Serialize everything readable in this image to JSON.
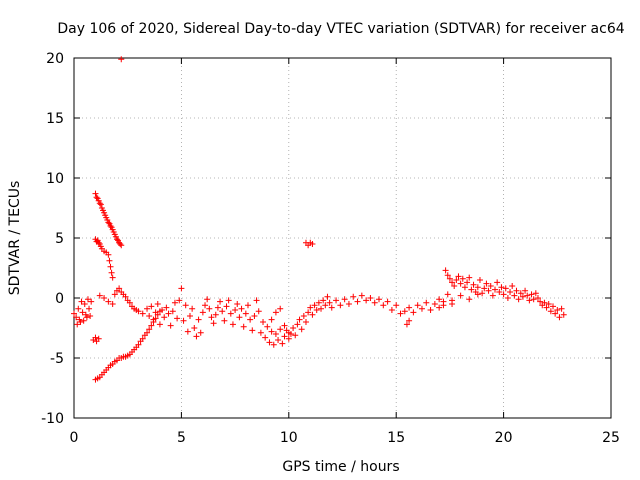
{
  "chart_data": {
    "type": "scatter",
    "title": "Day 106 of 2020, Sidereal Day-to-day VTEC variation (SDTVAR) for receiver ac64",
    "xlabel": "GPS time / hours",
    "ylabel": "SDTVAR / TECUs",
    "xlim": [
      0,
      25
    ],
    "ylim": [
      -10,
      20
    ],
    "xticks": [
      0,
      5,
      10,
      15,
      20,
      25
    ],
    "yticks": [
      -10,
      -5,
      0,
      5,
      10,
      15,
      20
    ],
    "xtick_labels": [
      "0",
      "5",
      "10",
      "15",
      "20",
      "25"
    ],
    "ytick_labels": [
      "-10",
      "-5",
      "0",
      "5",
      "10",
      "15",
      "20"
    ],
    "grid": true,
    "marker": "+",
    "series": [
      {
        "name": "SDTVAR",
        "color": "#ff0000",
        "points": [
          [
            0.0,
            -1.3
          ],
          [
            0.1,
            -1.6
          ],
          [
            0.15,
            -2.2
          ],
          [
            0.2,
            -0.9
          ],
          [
            0.25,
            -1.8
          ],
          [
            0.3,
            -2.0
          ],
          [
            0.35,
            -0.3
          ],
          [
            0.4,
            -1.2
          ],
          [
            0.45,
            -1.9
          ],
          [
            0.5,
            -0.5
          ],
          [
            0.55,
            -1.4
          ],
          [
            0.6,
            -1.6
          ],
          [
            0.65,
            -0.1
          ],
          [
            0.7,
            -0.9
          ],
          [
            0.75,
            -1.5
          ],
          [
            0.8,
            -0.3
          ],
          [
            0.9,
            -3.5
          ],
          [
            1.0,
            -3.3
          ],
          [
            1.05,
            -3.6
          ],
          [
            1.15,
            -3.4
          ],
          [
            1.0,
            8.7
          ],
          [
            1.05,
            8.4
          ],
          [
            1.1,
            8.3
          ],
          [
            1.15,
            8.1
          ],
          [
            1.2,
            7.9
          ],
          [
            1.25,
            7.8
          ],
          [
            1.3,
            7.5
          ],
          [
            1.35,
            7.3
          ],
          [
            1.4,
            7.1
          ],
          [
            1.45,
            6.9
          ],
          [
            1.5,
            6.7
          ],
          [
            1.55,
            6.5
          ],
          [
            1.6,
            6.3
          ],
          [
            1.65,
            6.2
          ],
          [
            1.7,
            6.0
          ],
          [
            1.75,
            5.9
          ],
          [
            1.8,
            5.7
          ],
          [
            1.85,
            5.5
          ],
          [
            1.9,
            5.3
          ],
          [
            1.95,
            5.1
          ],
          [
            2.0,
            4.9
          ],
          [
            2.05,
            4.8
          ],
          [
            2.1,
            4.6
          ],
          [
            2.15,
            4.5
          ],
          [
            2.2,
            4.4
          ],
          [
            1.0,
            4.9
          ],
          [
            1.05,
            4.7
          ],
          [
            1.1,
            4.8
          ],
          [
            1.15,
            4.6
          ],
          [
            1.2,
            4.5
          ],
          [
            1.25,
            4.3
          ],
          [
            1.3,
            4.1
          ],
          [
            1.4,
            3.9
          ],
          [
            1.5,
            3.8
          ],
          [
            1.6,
            3.6
          ],
          [
            1.65,
            3.1
          ],
          [
            1.7,
            2.6
          ],
          [
            1.75,
            2.1
          ],
          [
            1.8,
            1.7
          ],
          [
            2.2,
            19.9
          ],
          [
            1.0,
            -6.8
          ],
          [
            1.1,
            -6.7
          ],
          [
            1.2,
            -6.6
          ],
          [
            1.3,
            -6.4
          ],
          [
            1.4,
            -6.2
          ],
          [
            1.5,
            -6.0
          ],
          [
            1.6,
            -5.8
          ],
          [
            1.7,
            -5.6
          ],
          [
            1.8,
            -5.5
          ],
          [
            1.9,
            -5.3
          ],
          [
            2.0,
            -5.2
          ],
          [
            2.1,
            -5.0
          ],
          [
            2.2,
            -5.0
          ],
          [
            2.3,
            -4.9
          ],
          [
            2.4,
            -4.9
          ],
          [
            2.5,
            -4.8
          ],
          [
            2.6,
            -4.7
          ],
          [
            2.7,
            -4.5
          ],
          [
            2.8,
            -4.3
          ],
          [
            2.9,
            -4.1
          ],
          [
            3.0,
            -3.9
          ],
          [
            3.1,
            -3.6
          ],
          [
            3.2,
            -3.4
          ],
          [
            3.3,
            -3.1
          ],
          [
            3.4,
            -2.9
          ],
          [
            3.5,
            -2.6
          ],
          [
            3.6,
            -2.3
          ],
          [
            3.7,
            -2.0
          ],
          [
            3.8,
            -1.7
          ],
          [
            3.9,
            -1.4
          ],
          [
            4.0,
            -1.1
          ],
          [
            1.2,
            0.2
          ],
          [
            1.4,
            0.0
          ],
          [
            1.6,
            -0.3
          ],
          [
            1.8,
            -0.5
          ],
          [
            1.9,
            0.3
          ],
          [
            2.0,
            0.6
          ],
          [
            2.1,
            0.8
          ],
          [
            2.2,
            0.5
          ],
          [
            2.3,
            0.3
          ],
          [
            2.4,
            0.1
          ],
          [
            2.5,
            -0.2
          ],
          [
            2.6,
            -0.4
          ],
          [
            2.7,
            -0.7
          ],
          [
            2.8,
            -0.9
          ],
          [
            2.9,
            -1.0
          ],
          [
            3.0,
            -1.1
          ],
          [
            3.2,
            -1.3
          ],
          [
            3.4,
            -0.9
          ],
          [
            3.5,
            -1.5
          ],
          [
            3.6,
            -0.7
          ],
          [
            3.7,
            -1.8
          ],
          [
            3.8,
            -1.2
          ],
          [
            3.9,
            -0.5
          ],
          [
            4.0,
            -2.2
          ],
          [
            4.1,
            -1.0
          ],
          [
            4.2,
            -1.6
          ],
          [
            4.3,
            -0.8
          ],
          [
            4.4,
            -1.3
          ],
          [
            4.5,
            -2.3
          ],
          [
            4.6,
            -1.1
          ],
          [
            4.7,
            -0.4
          ],
          [
            4.8,
            -1.7
          ],
          [
            4.9,
            -0.2
          ],
          [
            5.0,
            0.8
          ],
          [
            5.1,
            -1.9
          ],
          [
            5.2,
            -0.6
          ],
          [
            5.3,
            -2.8
          ],
          [
            5.4,
            -1.5
          ],
          [
            5.5,
            -0.9
          ],
          [
            5.6,
            -2.5
          ],
          [
            5.7,
            -3.2
          ],
          [
            5.8,
            -1.8
          ],
          [
            5.9,
            -2.9
          ],
          [
            6.0,
            -1.2
          ],
          [
            6.1,
            -0.6
          ],
          [
            6.2,
            -0.1
          ],
          [
            6.3,
            -0.9
          ],
          [
            6.4,
            -1.6
          ],
          [
            6.5,
            -2.1
          ],
          [
            6.6,
            -1.4
          ],
          [
            6.7,
            -0.8
          ],
          [
            6.8,
            -0.3
          ],
          [
            6.9,
            -1.1
          ],
          [
            7.0,
            -1.9
          ],
          [
            7.1,
            -0.7
          ],
          [
            7.2,
            -0.2
          ],
          [
            7.3,
            -1.3
          ],
          [
            7.4,
            -2.2
          ],
          [
            7.5,
            -1.0
          ],
          [
            7.6,
            -0.5
          ],
          [
            7.7,
            -1.6
          ],
          [
            7.8,
            -0.9
          ],
          [
            7.9,
            -2.4
          ],
          [
            8.0,
            -1.3
          ],
          [
            8.1,
            -0.6
          ],
          [
            8.2,
            -1.8
          ],
          [
            8.3,
            -2.7
          ],
          [
            8.4,
            -1.5
          ],
          [
            8.5,
            -0.2
          ],
          [
            8.6,
            -1.1
          ],
          [
            8.7,
            -2.9
          ],
          [
            8.8,
            -2.0
          ],
          [
            8.9,
            -3.3
          ],
          [
            9.0,
            -2.4
          ],
          [
            9.1,
            -3.7
          ],
          [
            9.2,
            -2.8
          ],
          [
            9.3,
            -3.9
          ],
          [
            9.4,
            -3.0
          ],
          [
            9.5,
            -3.5
          ],
          [
            9.6,
            -2.6
          ],
          [
            9.7,
            -3.8
          ],
          [
            9.8,
            -3.2
          ],
          [
            9.9,
            -2.7
          ],
          [
            10.0,
            -3.4
          ],
          [
            10.1,
            -3.0
          ],
          [
            10.2,
            -2.5
          ],
          [
            10.3,
            -3.1
          ],
          [
            10.4,
            -2.2
          ],
          [
            10.5,
            -1.8
          ],
          [
            10.6,
            -2.6
          ],
          [
            10.7,
            -1.5
          ],
          [
            10.8,
            -2.0
          ],
          [
            10.9,
            -1.2
          ],
          [
            11.0,
            -0.8
          ],
          [
            11.1,
            -1.4
          ],
          [
            11.2,
            -0.6
          ],
          [
            11.3,
            -1.0
          ],
          [
            11.4,
            -0.4
          ],
          [
            11.5,
            -0.9
          ],
          [
            11.6,
            -0.2
          ],
          [
            11.7,
            -0.6
          ],
          [
            11.8,
            0.1
          ],
          [
            11.9,
            -0.4
          ],
          [
            12.0,
            -0.8
          ],
          [
            12.2,
            -0.2
          ],
          [
            12.4,
            -0.6
          ],
          [
            12.6,
            -0.1
          ],
          [
            12.8,
            -0.5
          ],
          [
            13.0,
            0.1
          ],
          [
            13.2,
            -0.3
          ],
          [
            13.4,
            0.2
          ],
          [
            13.6,
            -0.2
          ],
          [
            13.8,
            0.0
          ],
          [
            14.0,
            -0.4
          ],
          [
            14.2,
            -0.1
          ],
          [
            14.4,
            -0.6
          ],
          [
            14.6,
            -0.3
          ],
          [
            14.8,
            -1.0
          ],
          [
            15.0,
            -0.6
          ],
          [
            15.2,
            -1.3
          ],
          [
            15.4,
            -1.1
          ],
          [
            15.6,
            -0.8
          ],
          [
            15.8,
            -1.2
          ],
          [
            16.0,
            -0.6
          ],
          [
            16.2,
            -0.9
          ],
          [
            16.4,
            -0.4
          ],
          [
            16.6,
            -1.0
          ],
          [
            16.8,
            -0.5
          ],
          [
            17.0,
            -0.1
          ],
          [
            17.2,
            -0.6
          ],
          [
            17.4,
            0.3
          ],
          [
            17.6,
            -0.2
          ],
          [
            9.2,
            -1.8
          ],
          [
            9.4,
            -1.2
          ],
          [
            9.6,
            -0.9
          ],
          [
            9.8,
            -2.3
          ],
          [
            10.0,
            -2.9
          ],
          [
            10.8,
            4.6
          ],
          [
            10.9,
            4.4
          ],
          [
            11.0,
            4.6
          ],
          [
            11.1,
            4.5
          ],
          [
            15.5,
            -2.2
          ],
          [
            15.6,
            -1.9
          ],
          [
            17.3,
            2.3
          ],
          [
            17.4,
            1.9
          ],
          [
            17.5,
            1.6
          ],
          [
            17.6,
            1.3
          ],
          [
            17.7,
            1.0
          ],
          [
            17.8,
            1.5
          ],
          [
            17.9,
            1.8
          ],
          [
            18.0,
            1.2
          ],
          [
            18.1,
            1.6
          ],
          [
            18.2,
            0.9
          ],
          [
            18.3,
            1.3
          ],
          [
            18.4,
            1.7
          ],
          [
            18.5,
            0.7
          ],
          [
            18.6,
            1.1
          ],
          [
            18.7,
            0.5
          ],
          [
            18.8,
            0.9
          ],
          [
            18.9,
            1.5
          ],
          [
            19.0,
            0.4
          ],
          [
            19.1,
            0.8
          ],
          [
            19.2,
            1.2
          ],
          [
            19.3,
            0.6
          ],
          [
            19.4,
            1.0
          ],
          [
            19.5,
            0.2
          ],
          [
            19.6,
            0.7
          ],
          [
            19.7,
            1.3
          ],
          [
            19.8,
            0.5
          ],
          [
            19.9,
            0.9
          ],
          [
            20.0,
            0.3
          ],
          [
            20.1,
            0.8
          ],
          [
            20.2,
            0.0
          ],
          [
            20.3,
            0.5
          ],
          [
            20.4,
            1.0
          ],
          [
            20.5,
            0.2
          ],
          [
            20.6,
            0.6
          ],
          [
            20.7,
            -0.1
          ],
          [
            20.8,
            0.4
          ],
          [
            20.9,
            0.1
          ],
          [
            21.0,
            0.6
          ],
          [
            21.1,
            0.2
          ],
          [
            21.2,
            -0.2
          ],
          [
            21.3,
            0.3
          ],
          [
            21.4,
            -0.1
          ],
          [
            21.5,
            0.4
          ],
          [
            21.6,
            0.0
          ],
          [
            21.7,
            -0.3
          ],
          [
            21.8,
            -0.6
          ],
          [
            21.9,
            -0.4
          ],
          [
            22.0,
            -0.8
          ],
          [
            22.1,
            -0.5
          ],
          [
            22.2,
            -1.1
          ],
          [
            22.3,
            -0.7
          ],
          [
            22.4,
            -1.3
          ],
          [
            22.5,
            -1.0
          ],
          [
            22.6,
            -1.6
          ],
          [
            22.7,
            -0.9
          ],
          [
            22.8,
            -1.4
          ],
          [
            17.0,
            -0.8
          ],
          [
            17.2,
            -0.3
          ],
          [
            17.6,
            -0.5
          ],
          [
            18.0,
            0.2
          ],
          [
            18.4,
            -0.1
          ],
          [
            18.8,
            0.3
          ]
        ]
      }
    ]
  }
}
